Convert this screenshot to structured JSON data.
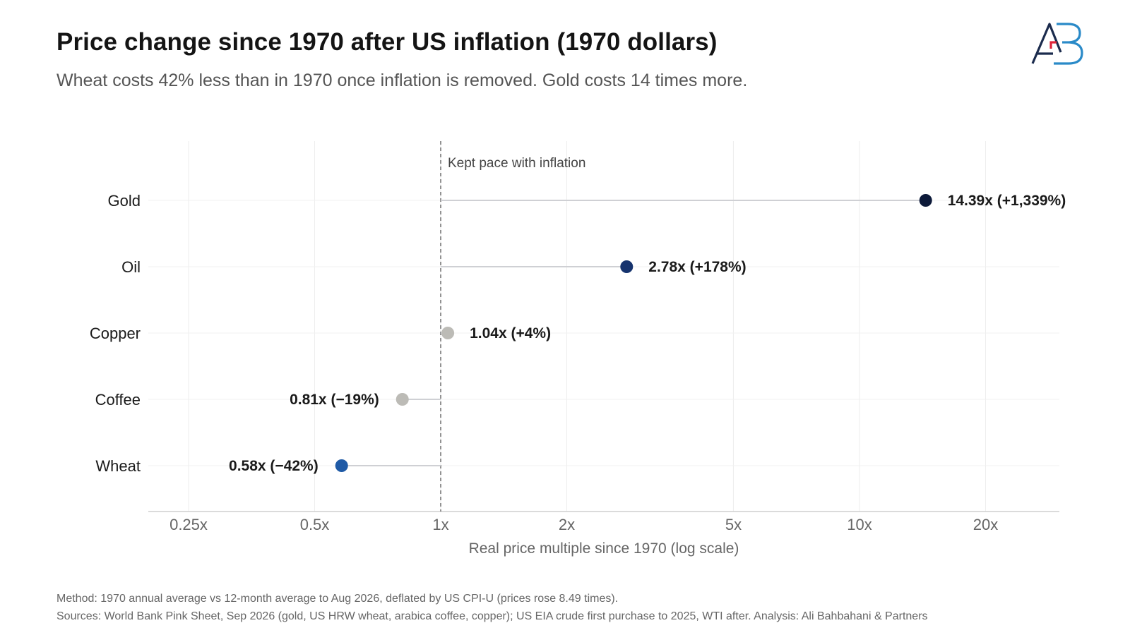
{
  "header": {
    "title": "Price change since 1970 after US inflation (1970 dollars)",
    "subtitle": "Wheat costs 42% less than in 1970 once inflation is removed. Gold costs 14 times more."
  },
  "footer": {
    "method": "Method: 1970 annual average vs 12-month average to Aug 2026, deflated by US CPI-U (prices rose 8.49 times).",
    "sources": "Sources: World Bank Pink Sheet, Sep 2026 (gold, US HRW wheat, arabica coffee, copper); US EIA crude first purchase to 2025, WTI after. Analysis: Ali Bahbahani & Partners"
  },
  "chart_data": {
    "type": "scatter",
    "subtype": "lollipop",
    "title": "Price change since 1970 after US inflation (1970 dollars)",
    "subtitle": "Wheat costs 42% less than in 1970 once inflation is removed. Gold costs 14 times more.",
    "xlabel": "Real price multiple since 1970 (log scale)",
    "ylabel": "",
    "x_scale": "log",
    "xlim": [
      0.22,
      30
    ],
    "x_ticks": [
      0.25,
      0.5,
      1,
      2,
      5,
      10,
      20
    ],
    "x_tick_labels": [
      "0.25x",
      "0.5x",
      "1x",
      "2x",
      "5x",
      "10x",
      "20x"
    ],
    "reference_line": {
      "x": 1,
      "label": "Kept pace with inflation",
      "style": "dashed"
    },
    "grid": true,
    "legend": "none",
    "categories": [
      "Gold",
      "Oil",
      "Copper",
      "Coffee",
      "Wheat"
    ],
    "values": [
      14.39,
      2.78,
      1.04,
      0.81,
      0.58
    ],
    "value_labels": [
      "14.39x  (+1,339%)",
      "2.78x  (+178%)",
      "1.04x  (+4%)",
      "0.81x  (−19%)",
      "0.58x  (−42%)"
    ],
    "colors": [
      "#0d1a3a",
      "#16336e",
      "#bcbbb6",
      "#bcbbb6",
      "#1f5aa6"
    ]
  },
  "logo": {
    "text": "AB",
    "colors": {
      "dark": "#1b2b4d",
      "red": "#e0243a",
      "blue": "#2a8ac8"
    }
  }
}
